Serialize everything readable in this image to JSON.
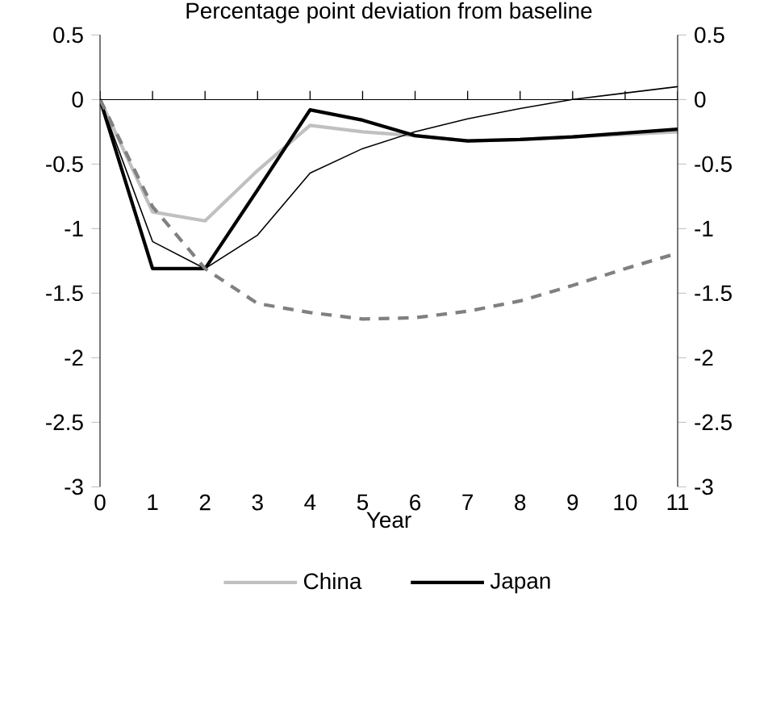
{
  "chart_data": {
    "type": "line",
    "title": "Percentage point deviation from baseline",
    "xlabel": "Year",
    "x": [
      0,
      1,
      2,
      3,
      4,
      5,
      6,
      7,
      8,
      9,
      10,
      11
    ],
    "xlim": [
      0,
      11
    ],
    "xticks": [
      0,
      1,
      2,
      3,
      4,
      5,
      6,
      7,
      8,
      9,
      10,
      11
    ],
    "ylim": [
      -3,
      0.5
    ],
    "yticks": [
      -3,
      -2.5,
      -2,
      -1.5,
      -1,
      -0.5,
      0,
      0.5
    ],
    "y2lim": [
      -3,
      0.5
    ],
    "y2ticks": [
      -3,
      -2.5,
      -2,
      -1.5,
      -1,
      -0.5,
      0,
      0.5
    ],
    "legend": "bottom",
    "marker": "none",
    "series": [
      {
        "name": "China",
        "color": "#c0c0c0",
        "values": [
          0,
          -0.87,
          -0.94,
          -0.55,
          -0.2,
          -0.25,
          -0.28,
          -0.32,
          -0.31,
          -0.29,
          -0.27,
          -0.25
        ]
      },
      {
        "name": "Japan",
        "color": "#000000",
        "values": [
          0,
          -1.31,
          -1.31,
          -0.7,
          -0.08,
          -0.16,
          -0.28,
          -0.32,
          -0.31,
          -0.29,
          -0.26,
          -0.23
        ]
      },
      {
        "color": "#000000",
        "values": [
          0,
          -1.1,
          -1.31,
          -1.05,
          -0.57,
          -0.38,
          -0.25,
          -0.15,
          -0.07,
          0.0,
          0.05,
          0.1
        ]
      },
      {
        "color": "#808080",
        "line_style": "dashed",
        "values": [
          0,
          -0.83,
          -1.31,
          -1.58,
          -1.65,
          -1.7,
          -1.69,
          -1.64,
          -1.56,
          -1.44,
          -1.31,
          -1.19
        ]
      }
    ]
  }
}
